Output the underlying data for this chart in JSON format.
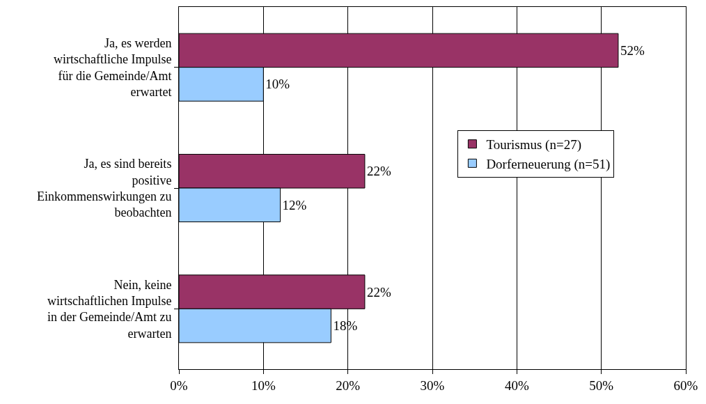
{
  "chart_data": {
    "type": "bar",
    "orientation": "horizontal",
    "categories": [
      "Ja, es werden wirtschaftliche Impulse für die Gemeinde/Amt erwartet",
      "Ja, es sind bereits positive Einkommenswirkungen zu beobachten",
      "Nein, keine wirtschaftlichen Impulse in der Gemeinde/Amt zu erwarten"
    ],
    "series": [
      {
        "name": "Tourismus (n=27)",
        "color": "#993366",
        "values": [
          52,
          22,
          22
        ],
        "value_labels": [
          "52%",
          "22%",
          "22%"
        ]
      },
      {
        "name": "Dorferneuerung (n=51)",
        "color": "#99ccff",
        "values": [
          10,
          12,
          18
        ],
        "value_labels": [
          "10%",
          "12%",
          "18%"
        ]
      }
    ],
    "xlim": [
      0,
      60
    ],
    "xticks": [
      {
        "value": 0,
        "label": "0%"
      },
      {
        "value": 10,
        "label": "10%"
      },
      {
        "value": 20,
        "label": "20%"
      },
      {
        "value": 30,
        "label": "30%"
      },
      {
        "value": 40,
        "label": "40%"
      },
      {
        "value": 50,
        "label": "50%"
      },
      {
        "value": 60,
        "label": "60%"
      }
    ],
    "grid": "x",
    "legend": "right"
  }
}
